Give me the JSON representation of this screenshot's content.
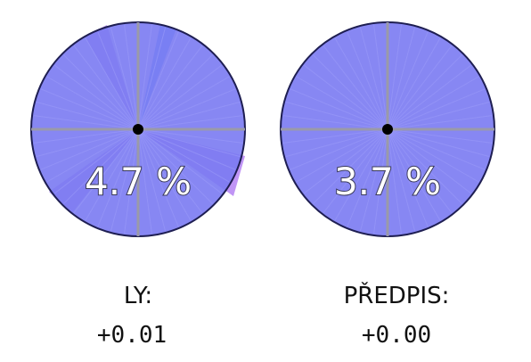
{
  "gauges": [
    {
      "percent_label": "4.7 %",
      "label": "LY:",
      "delta": "+0.01"
    },
    {
      "percent_label": "3.7 %",
      "label": "PŘEDPIS:",
      "delta": "+0.00"
    }
  ]
}
